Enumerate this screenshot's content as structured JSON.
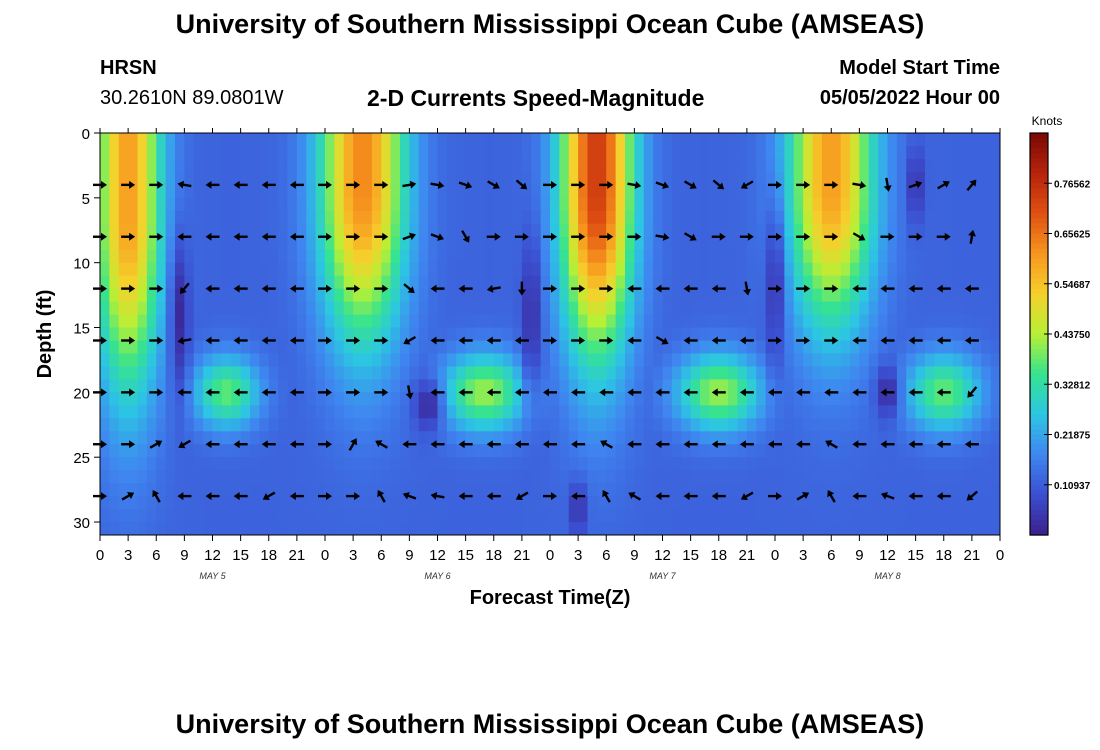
{
  "header": {
    "title": "University of Southern Mississippi Ocean Cube (AMSEAS)",
    "station": "HRSN",
    "location": "30.2610N  89.0801W",
    "subtitle": "2-D Currents Speed-Magnitude",
    "model_start_label": "Model Start Time",
    "model_start_value": "05/05/2022 Hour 00"
  },
  "footer": {
    "title": "University of Southern Mississippi Ocean Cube (AMSEAS)"
  },
  "colors": {
    "colormap": [
      "#3b1f8c",
      "#3b4fd1",
      "#3f86f0",
      "#2cc6e3",
      "#36e38f",
      "#b7f035",
      "#f6d02c",
      "#f7951e",
      "#e05012",
      "#b5230b",
      "#7a0805"
    ],
    "arrow": "#000000"
  },
  "chart_data": {
    "type": "heatmap",
    "xlabel": "Forecast Time(Z)",
    "ylabel": "Depth (ft)",
    "xlim": [
      0,
      96
    ],
    "ylim": [
      31,
      0
    ],
    "x_ticks": [
      0,
      3,
      6,
      9,
      12,
      15,
      18,
      21,
      24,
      27,
      30,
      33,
      36,
      39,
      42,
      45,
      48,
      51,
      54,
      57,
      60,
      63,
      66,
      69,
      72,
      75,
      78,
      81,
      84,
      87,
      90,
      93,
      96
    ],
    "x_tick_labels": [
      "0",
      "3",
      "6",
      "9",
      "12",
      "15",
      "18",
      "21",
      "0",
      "3",
      "6",
      "9",
      "12",
      "15",
      "18",
      "21",
      "0",
      "3",
      "6",
      "9",
      "12",
      "15",
      "18",
      "21",
      "0",
      "3",
      "6",
      "9",
      "12",
      "15",
      "18",
      "21",
      "0"
    ],
    "y_ticks": [
      0,
      5,
      10,
      15,
      20,
      25,
      30
    ],
    "y_tick_labels": [
      "0",
      "5",
      "10",
      "15",
      "20",
      "25",
      "30"
    ],
    "day_labels": [
      {
        "x": 12,
        "text": "MAY 5"
      },
      {
        "x": 36,
        "text": "MAY 6"
      },
      {
        "x": 60,
        "text": "MAY 7"
      },
      {
        "x": 84,
        "text": "MAY 8"
      }
    ],
    "colorbar": {
      "label": "Knots",
      "min": 0.0,
      "max": 0.875,
      "tick_values": [
        0.76562,
        0.65625,
        0.54687,
        0.4375,
        0.32812,
        0.21875,
        0.10937
      ],
      "tick_labels": [
        "0.76562",
        "0.65625",
        "0.54687",
        "0.43750",
        "0.32812",
        "0.21875",
        "0.10937"
      ]
    },
    "speed_field": {
      "units": "knots",
      "x_step_hours": 1,
      "y_step_ft": 1,
      "surface_maxima": [
        {
          "x": 3,
          "depth": 6,
          "speed": 0.6,
          "width": 3.5,
          "depth_scale": 14
        },
        {
          "x": 28,
          "depth": 4,
          "speed": 0.63,
          "width": 4.5,
          "depth_scale": 12
        },
        {
          "x": 53,
          "depth": 4,
          "speed": 0.74,
          "width": 3.8,
          "depth_scale": 13
        },
        {
          "x": 78,
          "depth": 4,
          "speed": 0.6,
          "width": 4.5,
          "depth_scale": 11
        }
      ],
      "subsurface_maxima": [
        {
          "x": 13.5,
          "depth": 20,
          "speed": 0.38,
          "width": 3.5,
          "depth_scale": 2.8
        },
        {
          "x": 41,
          "depth": 20,
          "speed": 0.42,
          "width": 4.5,
          "depth_scale": 3.0
        },
        {
          "x": 66,
          "depth": 20,
          "speed": 0.42,
          "width": 4.5,
          "depth_scale": 3.0
        },
        {
          "x": 90,
          "depth": 20,
          "speed": 0.38,
          "width": 4.0,
          "depth_scale": 3.0
        }
      ],
      "minima": [
        {
          "x": 8.5,
          "depth": 14,
          "speed": 0.02,
          "width": 1.0,
          "depth_scale": 6
        },
        {
          "x": 35,
          "depth": 21,
          "speed": 0.02,
          "width": 1.5,
          "depth_scale": 2
        },
        {
          "x": 46,
          "depth": 14,
          "speed": 0.03,
          "width": 1.0,
          "depth_scale": 6
        },
        {
          "x": 51,
          "depth": 29,
          "speed": 0.02,
          "width": 0.8,
          "depth_scale": 2
        },
        {
          "x": 72,
          "depth": 12,
          "speed": 0.04,
          "width": 1.0,
          "depth_scale": 6
        },
        {
          "x": 84,
          "depth": 20,
          "speed": 0.02,
          "width": 1.2,
          "depth_scale": 2
        },
        {
          "x": 87,
          "depth": 4,
          "speed": 0.03,
          "width": 0.8,
          "depth_scale": 3
        }
      ],
      "background_speed": 0.12
    },
    "vectors": {
      "times": [
        0,
        3,
        6,
        9,
        12,
        15,
        18,
        21,
        24,
        27,
        30,
        33,
        36,
        39,
        42,
        45,
        48,
        51,
        54,
        57,
        60,
        63,
        66,
        69,
        72,
        75,
        78,
        81,
        84,
        87,
        90,
        93
      ],
      "depths": [
        4,
        8,
        12,
        16,
        20,
        24,
        28
      ],
      "direction_note": "compass degrees the current flows toward (90 = east, 270 = west)",
      "directions": [
        [
          90,
          90,
          90,
          280,
          270,
          270,
          270,
          270,
          90,
          90,
          90,
          80,
          100,
          110,
          120,
          130,
          90,
          90,
          90,
          100,
          110,
          120,
          130,
          240,
          90,
          90,
          90,
          100,
          170,
          70,
          60,
          40
        ],
        [
          90,
          90,
          90,
          270,
          270,
          270,
          270,
          270,
          90,
          90,
          90,
          70,
          110,
          150,
          90,
          90,
          90,
          90,
          90,
          90,
          100,
          120,
          90,
          90,
          90,
          90,
          90,
          120,
          90,
          90,
          90,
          10
        ],
        [
          90,
          90,
          90,
          220,
          270,
          270,
          270,
          270,
          90,
          90,
          90,
          130,
          270,
          270,
          260,
          180,
          90,
          90,
          90,
          270,
          270,
          270,
          270,
          170,
          90,
          90,
          90,
          270,
          270,
          270,
          270,
          270
        ],
        [
          90,
          90,
          90,
          260,
          270,
          270,
          270,
          270,
          90,
          90,
          90,
          240,
          270,
          270,
          270,
          270,
          90,
          90,
          90,
          270,
          120,
          270,
          270,
          270,
          90,
          90,
          90,
          270,
          270,
          270,
          270,
          270
        ],
        [
          90,
          90,
          90,
          270,
          270,
          270,
          270,
          270,
          90,
          90,
          90,
          170,
          270,
          270,
          270,
          270,
          270,
          270,
          270,
          270,
          270,
          270,
          270,
          270,
          270,
          270,
          270,
          270,
          270,
          270,
          270,
          220
        ],
        [
          90,
          90,
          60,
          240,
          270,
          270,
          270,
          270,
          90,
          30,
          300,
          270,
          270,
          270,
          270,
          270,
          270,
          270,
          300,
          270,
          270,
          270,
          270,
          270,
          270,
          270,
          300,
          270,
          270,
          270,
          270,
          270
        ],
        [
          90,
          60,
          330,
          270,
          270,
          270,
          240,
          270,
          90,
          90,
          330,
          290,
          280,
          270,
          270,
          240,
          90,
          270,
          330,
          300,
          270,
          270,
          270,
          240,
          90,
          60,
          330,
          270,
          290,
          270,
          270,
          230
        ]
      ]
    }
  }
}
